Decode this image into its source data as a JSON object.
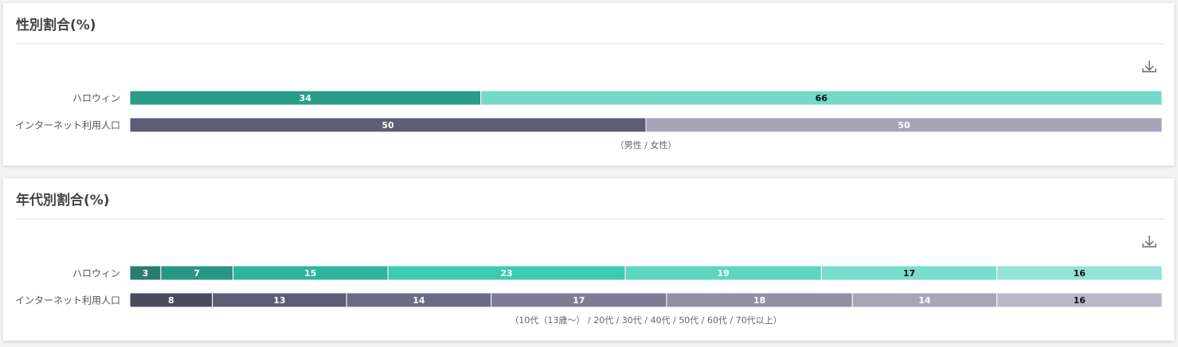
{
  "chart_data": [
    {
      "type": "stacked-bar-h",
      "title": "性別割合(%)",
      "note": "（男性 / 女性）",
      "categories": [
        "ハロウィン",
        "インターネット利用人口"
      ],
      "rows": [
        {
          "values": [
            34,
            66
          ],
          "colors": [
            "#2a9d8a",
            "#76d9c8"
          ],
          "label_colors": [
            "#ffffff",
            "#111111"
          ]
        },
        {
          "values": [
            50,
            50
          ],
          "colors": [
            "#5c5c75",
            "#a6a4b8"
          ],
          "label_colors": [
            "#ffffff",
            "#ffffff"
          ]
        }
      ]
    },
    {
      "type": "stacked-bar-h",
      "title": "年代別割合(%)",
      "note": "（10代（13歳～） / 20代 / 30代 / 40代 / 50代 / 60代 / 70代以上）",
      "categories": [
        "ハロウィン",
        "インターネット利用人口"
      ],
      "rows": [
        {
          "values": [
            3,
            7,
            15,
            23,
            19,
            17,
            16
          ],
          "colors": [
            "#2a7d6e",
            "#2a9685",
            "#30b39e",
            "#3fcab2",
            "#5dd5c0",
            "#78ddcc",
            "#93e3d6"
          ],
          "label_colors": [
            "#ffffff",
            "#ffffff",
            "#ffffff",
            "#ffffff",
            "#ffffff",
            "#111111",
            "#111111"
          ]
        },
        {
          "values": [
            8,
            13,
            14,
            17,
            18,
            14,
            16
          ],
          "colors": [
            "#4a4a5e",
            "#5c5c75",
            "#6b6b85",
            "#7e7c95",
            "#918fa6",
            "#a7a5b8",
            "#bab8c8"
          ],
          "label_colors": [
            "#ffffff",
            "#ffffff",
            "#ffffff",
            "#ffffff",
            "#ffffff",
            "#ffffff",
            "#111111"
          ]
        }
      ]
    }
  ]
}
